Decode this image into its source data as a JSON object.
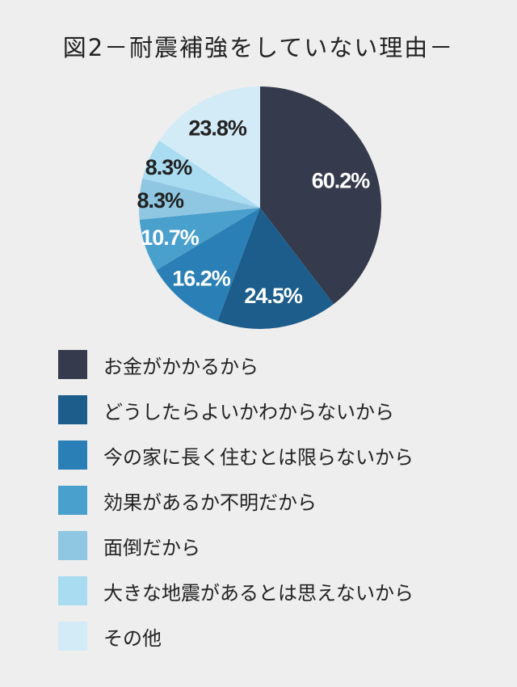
{
  "chart_data": {
    "type": "pie",
    "title": "図2－耐震補強をしていない理由－",
    "categories": [
      "お金がかかるから",
      "どうしたらよいかわからないから",
      "今の家に長く住むとは限らないから",
      "効果があるか不明だから",
      "面倒だから",
      "大きな地震があるとは思えないから",
      "その他"
    ],
    "values": [
      60.2,
      24.5,
      16.2,
      10.7,
      8.3,
      8.3,
      23.8
    ],
    "data_labels": [
      "60.2%",
      "24.5%",
      "16.2%",
      "10.7%",
      "8.3%",
      "8.3%",
      "23.8%"
    ],
    "colors": [
      "#353a4c",
      "#1c5d8c",
      "#2a80b6",
      "#4aa0cc",
      "#8fc6e2",
      "#a9dcf1",
      "#d3ebf7"
    ],
    "label_colors": [
      "#ffffff",
      "#ffffff",
      "#ffffff",
      "#ffffff",
      "#222222",
      "#222222",
      "#222222"
    ],
    "start": "12 o'clock",
    "direction": "clockwise",
    "legend": "bottom"
  }
}
